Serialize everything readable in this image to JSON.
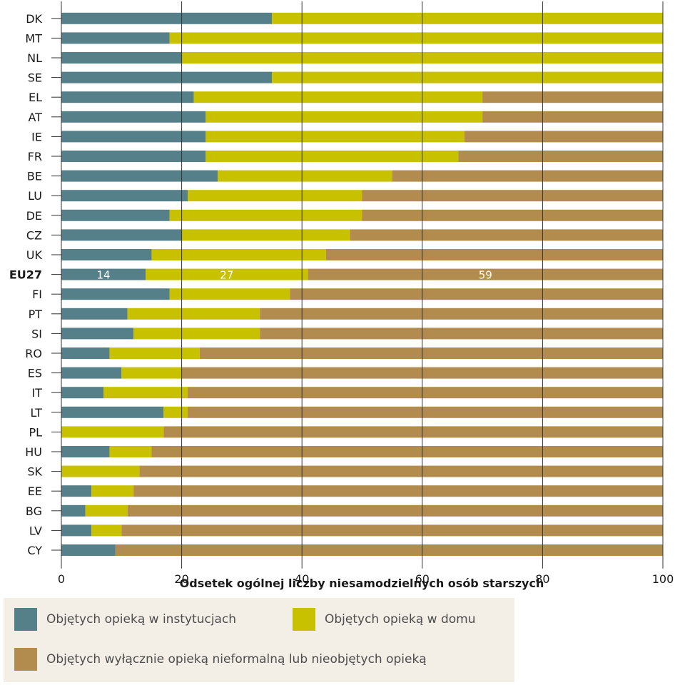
{
  "colors": {
    "institutional": "#55808a",
    "home": "#c8c100",
    "informal": "#b28c4e",
    "grid": "#333333",
    "text": "#1a1a1a"
  },
  "chart_data": {
    "type": "bar",
    "orientation": "horizontal",
    "stacked": true,
    "categories": [
      "DK",
      "MT",
      "NL",
      "SE",
      "EL",
      "AT",
      "IE",
      "FR",
      "BE",
      "LU",
      "DE",
      "CZ",
      "UK",
      "EU27",
      "FI",
      "PT",
      "SI",
      "RO",
      "ES",
      "IT",
      "LT",
      "PL",
      "HU",
      "SK",
      "EE",
      "BG",
      "LV",
      "CY"
    ],
    "series": [
      {
        "name": "Objętych opieką w instytucjach",
        "color_key": "institutional",
        "values": [
          35,
          18,
          20,
          35,
          22,
          24,
          24,
          24,
          26,
          21,
          18,
          20,
          15,
          14,
          18,
          11,
          12,
          8,
          10,
          7,
          17,
          0,
          8,
          0,
          5,
          4,
          5,
          9
        ]
      },
      {
        "name": "Objętych opieką w domu",
        "color_key": "home",
        "values": [
          65,
          82,
          80,
          65,
          48,
          46,
          43,
          42,
          29,
          29,
          32,
          28,
          29,
          27,
          20,
          22,
          21,
          15,
          10,
          14,
          4,
          17,
          7,
          13,
          7,
          7,
          5,
          0
        ]
      },
      {
        "name": "Objętych wyłącznie opieką nieformalną lub nieobjętych opieką",
        "color_key": "informal",
        "values": [
          0,
          0,
          0,
          0,
          30,
          30,
          33,
          34,
          45,
          50,
          50,
          52,
          56,
          59,
          62,
          67,
          67,
          77,
          80,
          79,
          79,
          83,
          85,
          87,
          88,
          89,
          90,
          91
        ]
      }
    ],
    "highlight_category": "EU27",
    "data_labels": [
      "14",
      "27",
      "59"
    ],
    "xlim": [
      0,
      100
    ],
    "xticks": [
      "0",
      "20",
      "40",
      "60",
      "80",
      "100"
    ],
    "xlabel": "Odsetek ogólnej liczby niesamodzielnych osób starszych",
    "grid": true,
    "legend_position": "bottom"
  },
  "legend": {
    "items": [
      {
        "label": "Objętych opieką w instytucjach",
        "color_key": "institutional"
      },
      {
        "label": "Objętych opieką w domu",
        "color_key": "home"
      },
      {
        "label": "Objętych wyłącznie opieką nieformalną lub nieobjętych opieką",
        "color_key": "informal"
      }
    ]
  }
}
